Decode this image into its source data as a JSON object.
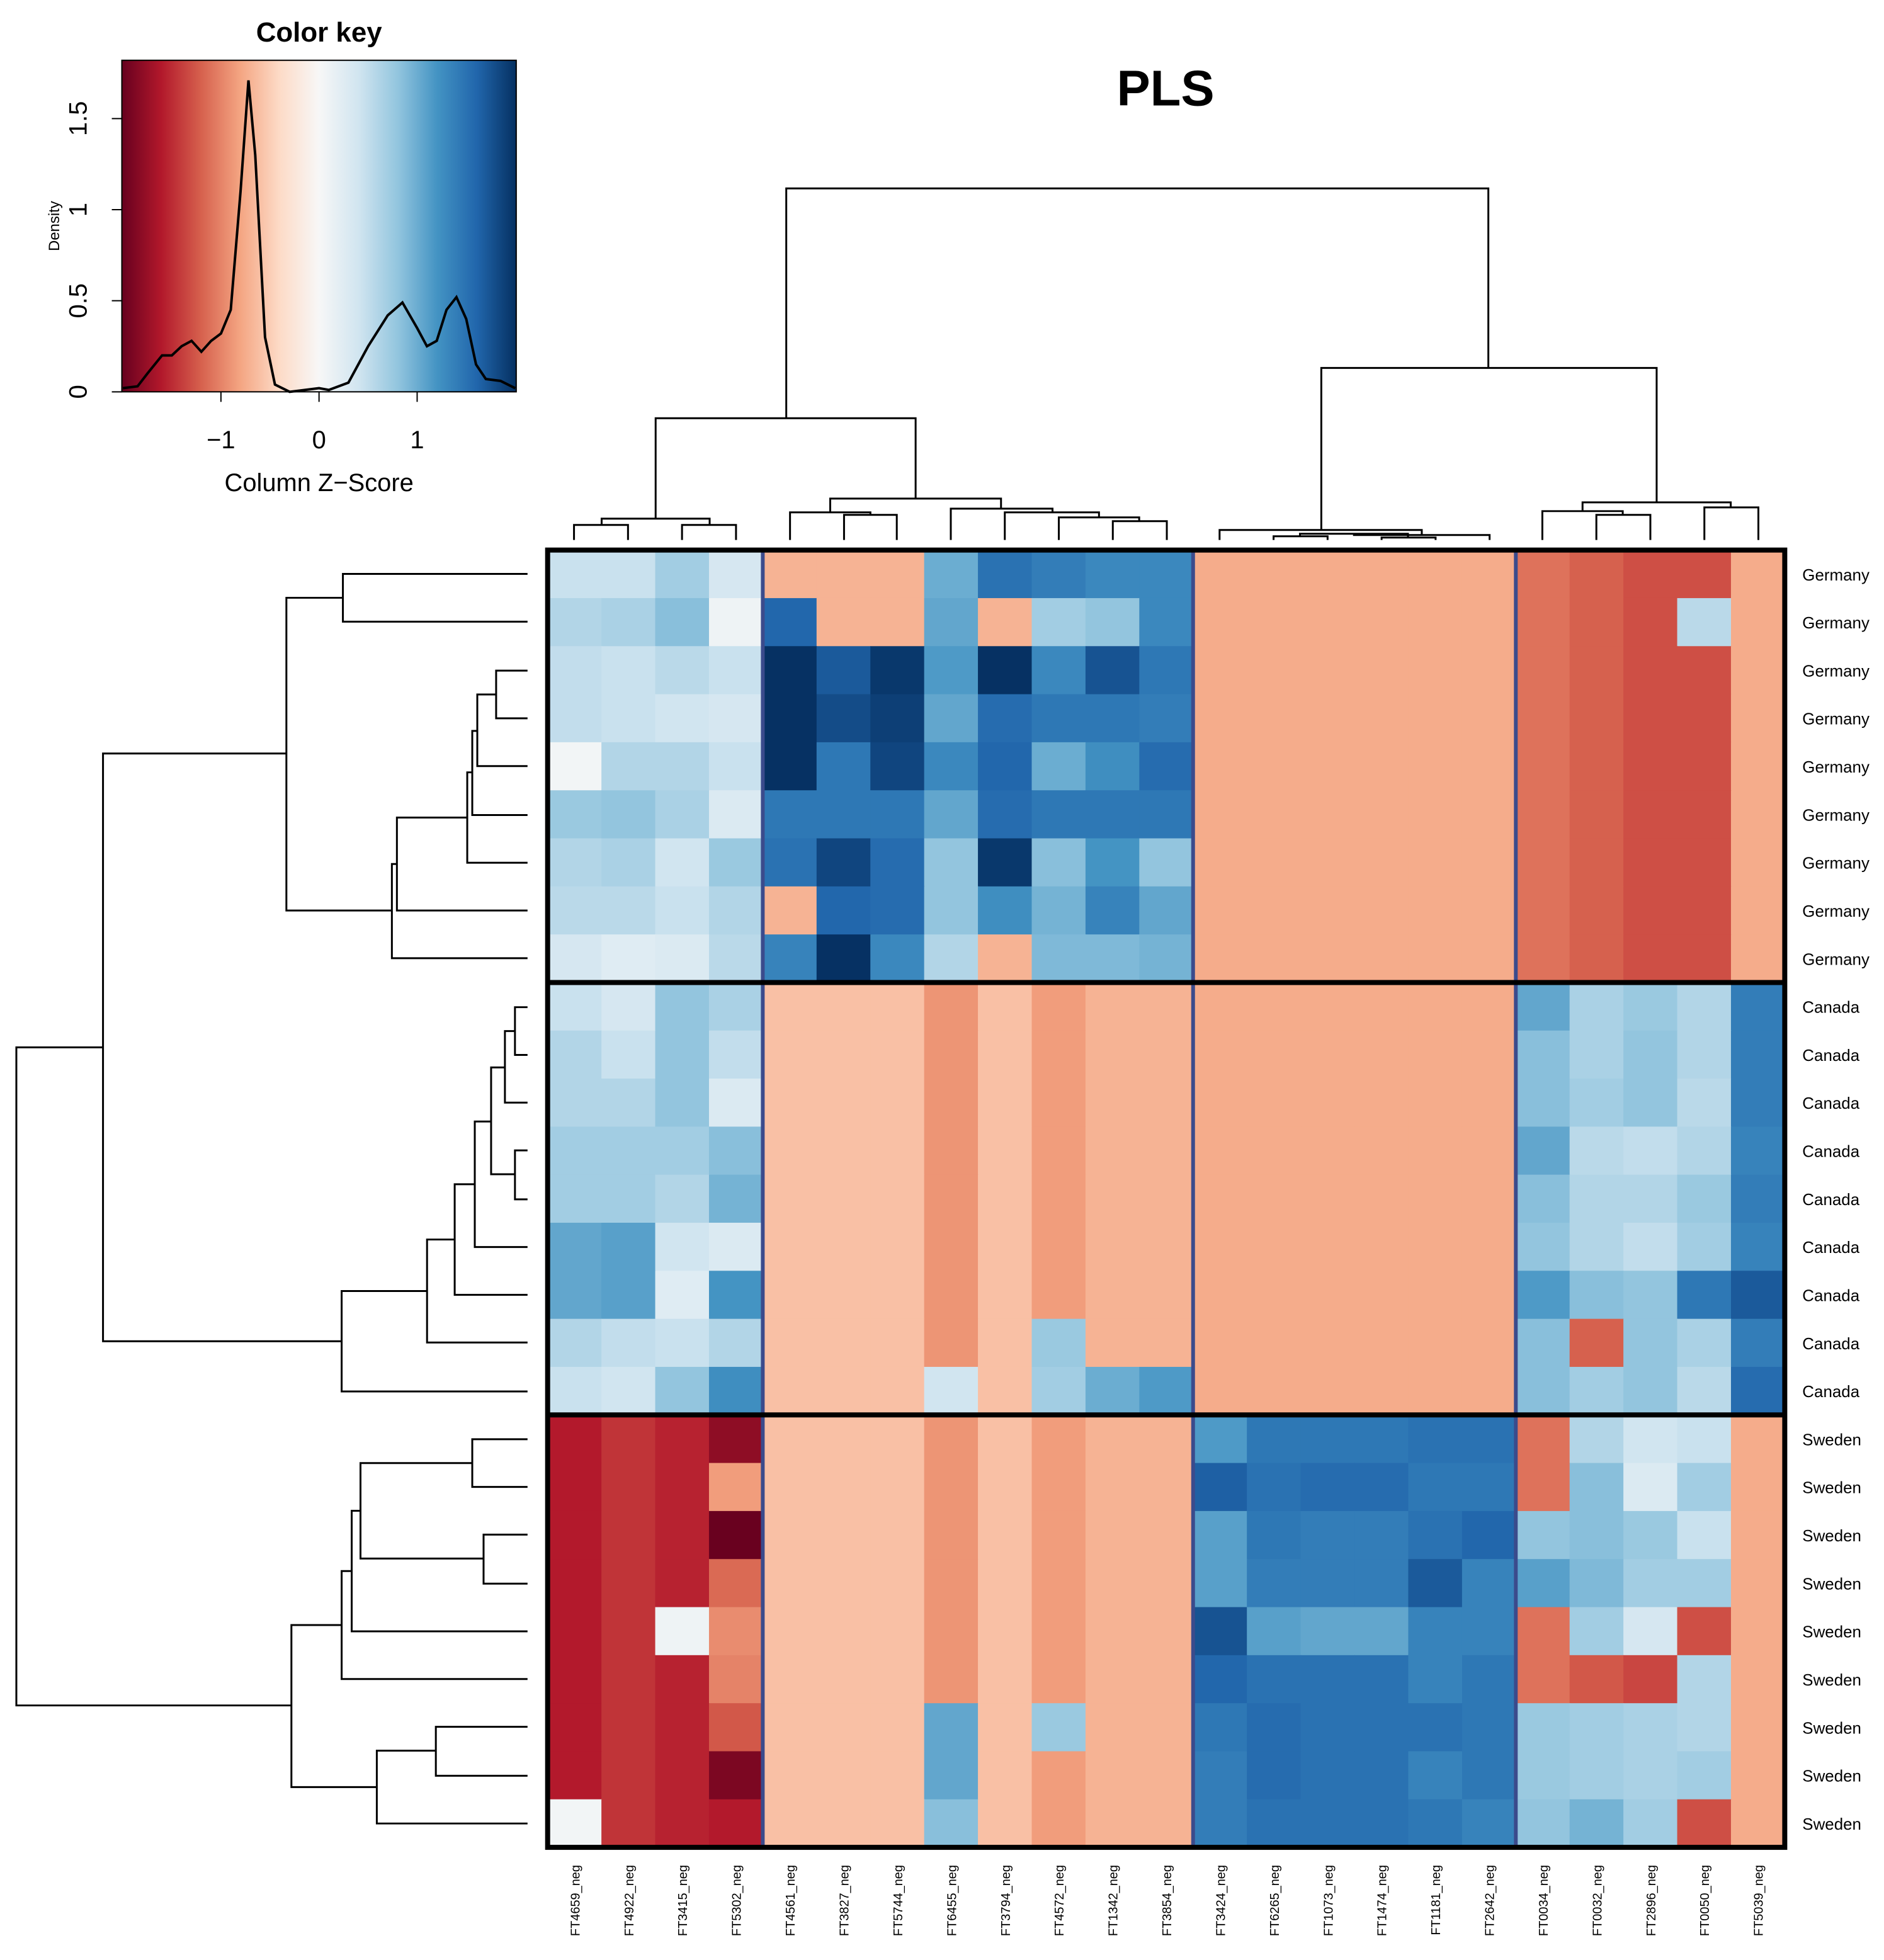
{
  "chart_data": {
    "type": "heatmap",
    "title": "PLS",
    "rows": [
      "Germany",
      "Germany",
      "Germany",
      "Germany",
      "Germany",
      "Germany",
      "Germany",
      "Germany",
      "Germany",
      "Canada",
      "Canada",
      "Canada",
      "Canada",
      "Canada",
      "Canada",
      "Canada",
      "Canada",
      "Canada",
      "Sweden",
      "Sweden",
      "Sweden",
      "Sweden",
      "Sweden",
      "Sweden",
      "Sweden",
      "Sweden",
      "Sweden"
    ],
    "columns": [
      "FT4659_neg",
      "FT4922_neg",
      "FT3415_neg",
      "FT5302_neg",
      "FT4561_neg",
      "FT3827_neg",
      "FT5744_neg",
      "FT6455_neg",
      "FT3794_neg",
      "FT4572_neg",
      "FT1342_neg",
      "FT3854_neg",
      "FT3424_neg",
      "FT6265_neg",
      "FT1073_neg",
      "FT1474_neg",
      "FT1181_neg",
      "FT2642_neg",
      "FT0034_neg",
      "FT0032_neg",
      "FT2896_neg",
      "FT0050_neg",
      "FT5039_neg"
    ],
    "values": [
      [
        0.45,
        0.45,
        0.7,
        0.35,
        -0.7,
        -0.7,
        -0.7,
        1.0,
        1.5,
        1.4,
        1.3,
        1.3,
        -0.75,
        -0.75,
        -0.75,
        -0.75,
        -0.75,
        -0.75,
        -1.1,
        -1.2,
        -1.3,
        -1.3,
        -0.75
      ],
      [
        0.6,
        0.65,
        0.85,
        0.1,
        1.6,
        -0.7,
        -0.7,
        1.05,
        -0.7,
        0.7,
        0.8,
        1.3,
        -0.75,
        -0.75,
        -0.75,
        -0.75,
        -0.75,
        -0.75,
        -1.1,
        -1.2,
        -1.3,
        0.55,
        -0.75
      ],
      [
        0.5,
        0.45,
        0.55,
        0.45,
        2.0,
        1.7,
        1.95,
        1.15,
        2.0,
        1.3,
        1.75,
        1.45,
        -0.75,
        -0.75,
        -0.75,
        -0.75,
        -0.75,
        -0.75,
        -1.1,
        -1.2,
        -1.3,
        -1.3,
        -0.75
      ],
      [
        0.5,
        0.45,
        0.4,
        0.35,
        2.0,
        1.8,
        1.9,
        1.05,
        1.55,
        1.45,
        1.45,
        1.4,
        -0.75,
        -0.75,
        -0.75,
        -0.75,
        -0.75,
        -0.75,
        -1.1,
        -1.2,
        -1.3,
        -1.3,
        -0.75
      ],
      [
        0.05,
        0.6,
        0.6,
        0.45,
        2.0,
        1.45,
        1.85,
        1.3,
        1.6,
        1.0,
        1.25,
        1.55,
        -0.75,
        -0.75,
        -0.75,
        -0.75,
        -0.75,
        -0.75,
        -1.1,
        -1.2,
        -1.3,
        -1.3,
        -0.75
      ],
      [
        0.75,
        0.8,
        0.65,
        0.3,
        1.45,
        1.45,
        1.45,
        1.05,
        1.55,
        1.45,
        1.45,
        1.45,
        -0.75,
        -0.75,
        -0.75,
        -0.75,
        -0.75,
        -0.75,
        -1.1,
        -1.2,
        -1.3,
        -1.3,
        -0.75
      ],
      [
        0.6,
        0.65,
        0.4,
        0.75,
        1.5,
        1.85,
        1.55,
        0.8,
        1.95,
        0.85,
        1.2,
        0.8,
        -0.75,
        -0.75,
        -0.75,
        -0.75,
        -0.75,
        -0.75,
        -1.1,
        -1.2,
        -1.3,
        -1.3,
        -0.75
      ],
      [
        0.55,
        0.55,
        0.45,
        0.6,
        -0.7,
        1.6,
        1.55,
        0.8,
        1.25,
        0.95,
        1.35,
        1.05,
        -0.75,
        -0.75,
        -0.75,
        -0.75,
        -0.75,
        -0.75,
        -1.1,
        -1.2,
        -1.3,
        -1.3,
        -0.75
      ],
      [
        0.35,
        0.25,
        0.3,
        0.55,
        1.35,
        2.0,
        1.3,
        0.6,
        -0.7,
        0.9,
        0.9,
        0.95,
        -0.75,
        -0.75,
        -0.75,
        -0.75,
        -0.75,
        -0.75,
        -1.1,
        -1.2,
        -1.3,
        -1.3,
        -0.75
      ],
      [
        0.45,
        0.35,
        0.8,
        0.65,
        -0.6,
        -0.6,
        -0.6,
        -0.9,
        -0.6,
        -0.85,
        -0.7,
        -0.7,
        -0.75,
        -0.75,
        -0.75,
        -0.75,
        -0.75,
        -0.75,
        1.05,
        0.65,
        0.75,
        0.6,
        1.4
      ],
      [
        0.6,
        0.45,
        0.8,
        0.5,
        -0.6,
        -0.6,
        -0.6,
        -0.9,
        -0.6,
        -0.85,
        -0.7,
        -0.7,
        -0.75,
        -0.75,
        -0.75,
        -0.75,
        -0.75,
        -0.75,
        0.85,
        0.65,
        0.8,
        0.6,
        1.4
      ],
      [
        0.6,
        0.6,
        0.8,
        0.3,
        -0.6,
        -0.6,
        -0.6,
        -0.9,
        -0.6,
        -0.85,
        -0.7,
        -0.7,
        -0.75,
        -0.75,
        -0.75,
        -0.75,
        -0.75,
        -0.75,
        0.85,
        0.7,
        0.8,
        0.55,
        1.4
      ],
      [
        0.7,
        0.7,
        0.7,
        0.85,
        -0.6,
        -0.6,
        -0.6,
        -0.9,
        -0.6,
        -0.85,
        -0.7,
        -0.7,
        -0.75,
        -0.75,
        -0.75,
        -0.75,
        -0.75,
        -0.75,
        1.05,
        0.55,
        0.5,
        0.6,
        1.35
      ],
      [
        0.7,
        0.7,
        0.6,
        0.95,
        -0.6,
        -0.6,
        -0.6,
        -0.9,
        -0.6,
        -0.85,
        -0.7,
        -0.7,
        -0.75,
        -0.75,
        -0.75,
        -0.75,
        -0.75,
        -0.75,
        0.85,
        0.6,
        0.6,
        0.75,
        1.4
      ],
      [
        1.05,
        1.1,
        0.4,
        0.3,
        -0.6,
        -0.6,
        -0.6,
        -0.9,
        -0.6,
        -0.85,
        -0.7,
        -0.7,
        -0.75,
        -0.75,
        -0.75,
        -0.75,
        -0.75,
        -0.75,
        0.8,
        0.6,
        0.5,
        0.7,
        1.35
      ],
      [
        1.05,
        1.1,
        0.25,
        1.2,
        -0.6,
        -0.6,
        -0.6,
        -0.9,
        -0.6,
        -0.85,
        -0.7,
        -0.7,
        -0.75,
        -0.75,
        -0.75,
        -0.75,
        -0.75,
        -0.75,
        1.15,
        0.85,
        0.8,
        1.45,
        1.7
      ],
      [
        0.6,
        0.5,
        0.45,
        0.6,
        -0.6,
        -0.6,
        -0.6,
        -0.9,
        -0.6,
        0.75,
        -0.7,
        -0.7,
        -0.75,
        -0.75,
        -0.75,
        -0.75,
        -0.75,
        -0.75,
        0.85,
        -1.2,
        0.8,
        0.65,
        1.4
      ],
      [
        0.45,
        0.4,
        0.8,
        1.25,
        -0.6,
        -0.6,
        -0.6,
        0.4,
        -0.6,
        0.7,
        1.0,
        1.15,
        -0.75,
        -0.75,
        -0.75,
        -0.75,
        -0.75,
        -0.75,
        0.85,
        0.7,
        0.8,
        0.55,
        1.55
      ],
      [
        -1.6,
        -1.45,
        -1.55,
        -1.8,
        -0.6,
        -0.6,
        -0.6,
        -0.9,
        -0.6,
        -0.85,
        -0.7,
        -0.7,
        1.15,
        1.45,
        1.45,
        1.45,
        1.5,
        1.5,
        -1.1,
        0.6,
        0.4,
        0.45,
        -0.75
      ],
      [
        -1.6,
        -1.45,
        -1.55,
        -0.85,
        -0.6,
        -0.6,
        -0.6,
        -0.9,
        -0.6,
        -0.85,
        -0.7,
        -0.7,
        1.65,
        1.5,
        1.55,
        1.55,
        1.45,
        1.45,
        -1.1,
        0.85,
        0.3,
        0.7,
        -0.75
      ],
      [
        -1.6,
        -1.45,
        -1.55,
        -2.0,
        -0.6,
        -0.6,
        -0.6,
        -0.9,
        -0.6,
        -0.85,
        -0.7,
        -0.7,
        1.1,
        1.45,
        1.4,
        1.4,
        1.5,
        1.6,
        0.8,
        0.85,
        0.75,
        0.45,
        -0.75
      ],
      [
        -1.6,
        -1.45,
        -1.55,
        -1.15,
        -0.6,
        -0.6,
        -0.6,
        -0.9,
        -0.6,
        -0.85,
        -0.7,
        -0.7,
        1.1,
        1.4,
        1.4,
        1.4,
        1.7,
        1.35,
        1.1,
        0.9,
        0.7,
        0.7,
        -0.75
      ],
      [
        -1.6,
        -1.45,
        0.1,
        -0.95,
        -0.6,
        -0.6,
        -0.6,
        -0.9,
        -0.6,
        -0.85,
        -0.7,
        -0.7,
        1.75,
        1.1,
        1.05,
        1.05,
        1.35,
        1.35,
        -1.1,
        0.7,
        0.35,
        -1.3,
        -0.75
      ],
      [
        -1.6,
        -1.45,
        -1.55,
        -1.0,
        -0.6,
        -0.6,
        -0.6,
        -0.9,
        -0.6,
        -0.85,
        -0.7,
        -0.7,
        1.6,
        1.5,
        1.5,
        1.5,
        1.35,
        1.45,
        -1.1,
        -1.25,
        -1.35,
        0.6,
        -0.75
      ],
      [
        -1.6,
        -1.45,
        -1.55,
        -1.25,
        -0.6,
        -0.6,
        -0.6,
        1.05,
        -0.6,
        0.75,
        -0.7,
        -0.7,
        1.45,
        1.55,
        1.5,
        1.5,
        1.5,
        1.45,
        0.75,
        0.7,
        0.65,
        0.6,
        -0.75
      ],
      [
        -1.6,
        -1.45,
        -1.55,
        -1.9,
        -0.6,
        -0.6,
        -0.6,
        1.05,
        -0.6,
        -0.85,
        -0.7,
        -0.7,
        1.4,
        1.55,
        1.5,
        1.5,
        1.35,
        1.45,
        0.75,
        0.7,
        0.65,
        0.7,
        -0.75
      ],
      [
        0.05,
        -1.45,
        -1.55,
        -1.6,
        -0.6,
        -0.6,
        -0.6,
        0.85,
        -0.6,
        -0.85,
        -0.7,
        -0.7,
        1.4,
        1.5,
        1.5,
        1.5,
        1.45,
        1.35,
        0.8,
        0.95,
        0.7,
        -1.3,
        -0.75
      ]
    ],
    "color_key": {
      "title": "Color key",
      "xlabel": "Column Z−Score",
      "ylabel": "Density",
      "palette": [
        "#67001f",
        "#b2182b",
        "#d6604d",
        "#f4a582",
        "#fddbc7",
        "#f7f7f7",
        "#d1e5f0",
        "#92c5de",
        "#4393c3",
        "#2166ac",
        "#053061"
      ],
      "xlim": [
        -2.01,
        2.01
      ],
      "ylim": [
        0,
        1.82
      ],
      "xticks": [
        {
          "value": -1,
          "label": "−1"
        },
        0,
        1
      ],
      "yticks": [
        0,
        0.5,
        1,
        1.5
      ],
      "density": {
        "x": [
          -2,
          -1.85,
          -1.75,
          -1.6,
          -1.5,
          -1.4,
          -1.3,
          -1.2,
          -1.1,
          -1.0,
          -0.9,
          -0.8,
          -0.72,
          -0.65,
          -0.55,
          -0.45,
          -0.3,
          0,
          0.1,
          0.3,
          0.5,
          0.7,
          0.85,
          1.0,
          1.1,
          1.2,
          1.3,
          1.4,
          1.5,
          1.6,
          1.7,
          1.85,
          2.0
        ],
        "y": [
          0.02,
          0.03,
          0.1,
          0.2,
          0.2,
          0.25,
          0.28,
          0.22,
          0.28,
          0.32,
          0.45,
          1.1,
          1.71,
          1.3,
          0.3,
          0.04,
          0.0,
          0.02,
          0.01,
          0.05,
          0.25,
          0.42,
          0.49,
          0.35,
          0.25,
          0.28,
          0.45,
          0.52,
          0.4,
          0.15,
          0.07,
          0.06,
          0.02
        ]
      }
    }
  }
}
